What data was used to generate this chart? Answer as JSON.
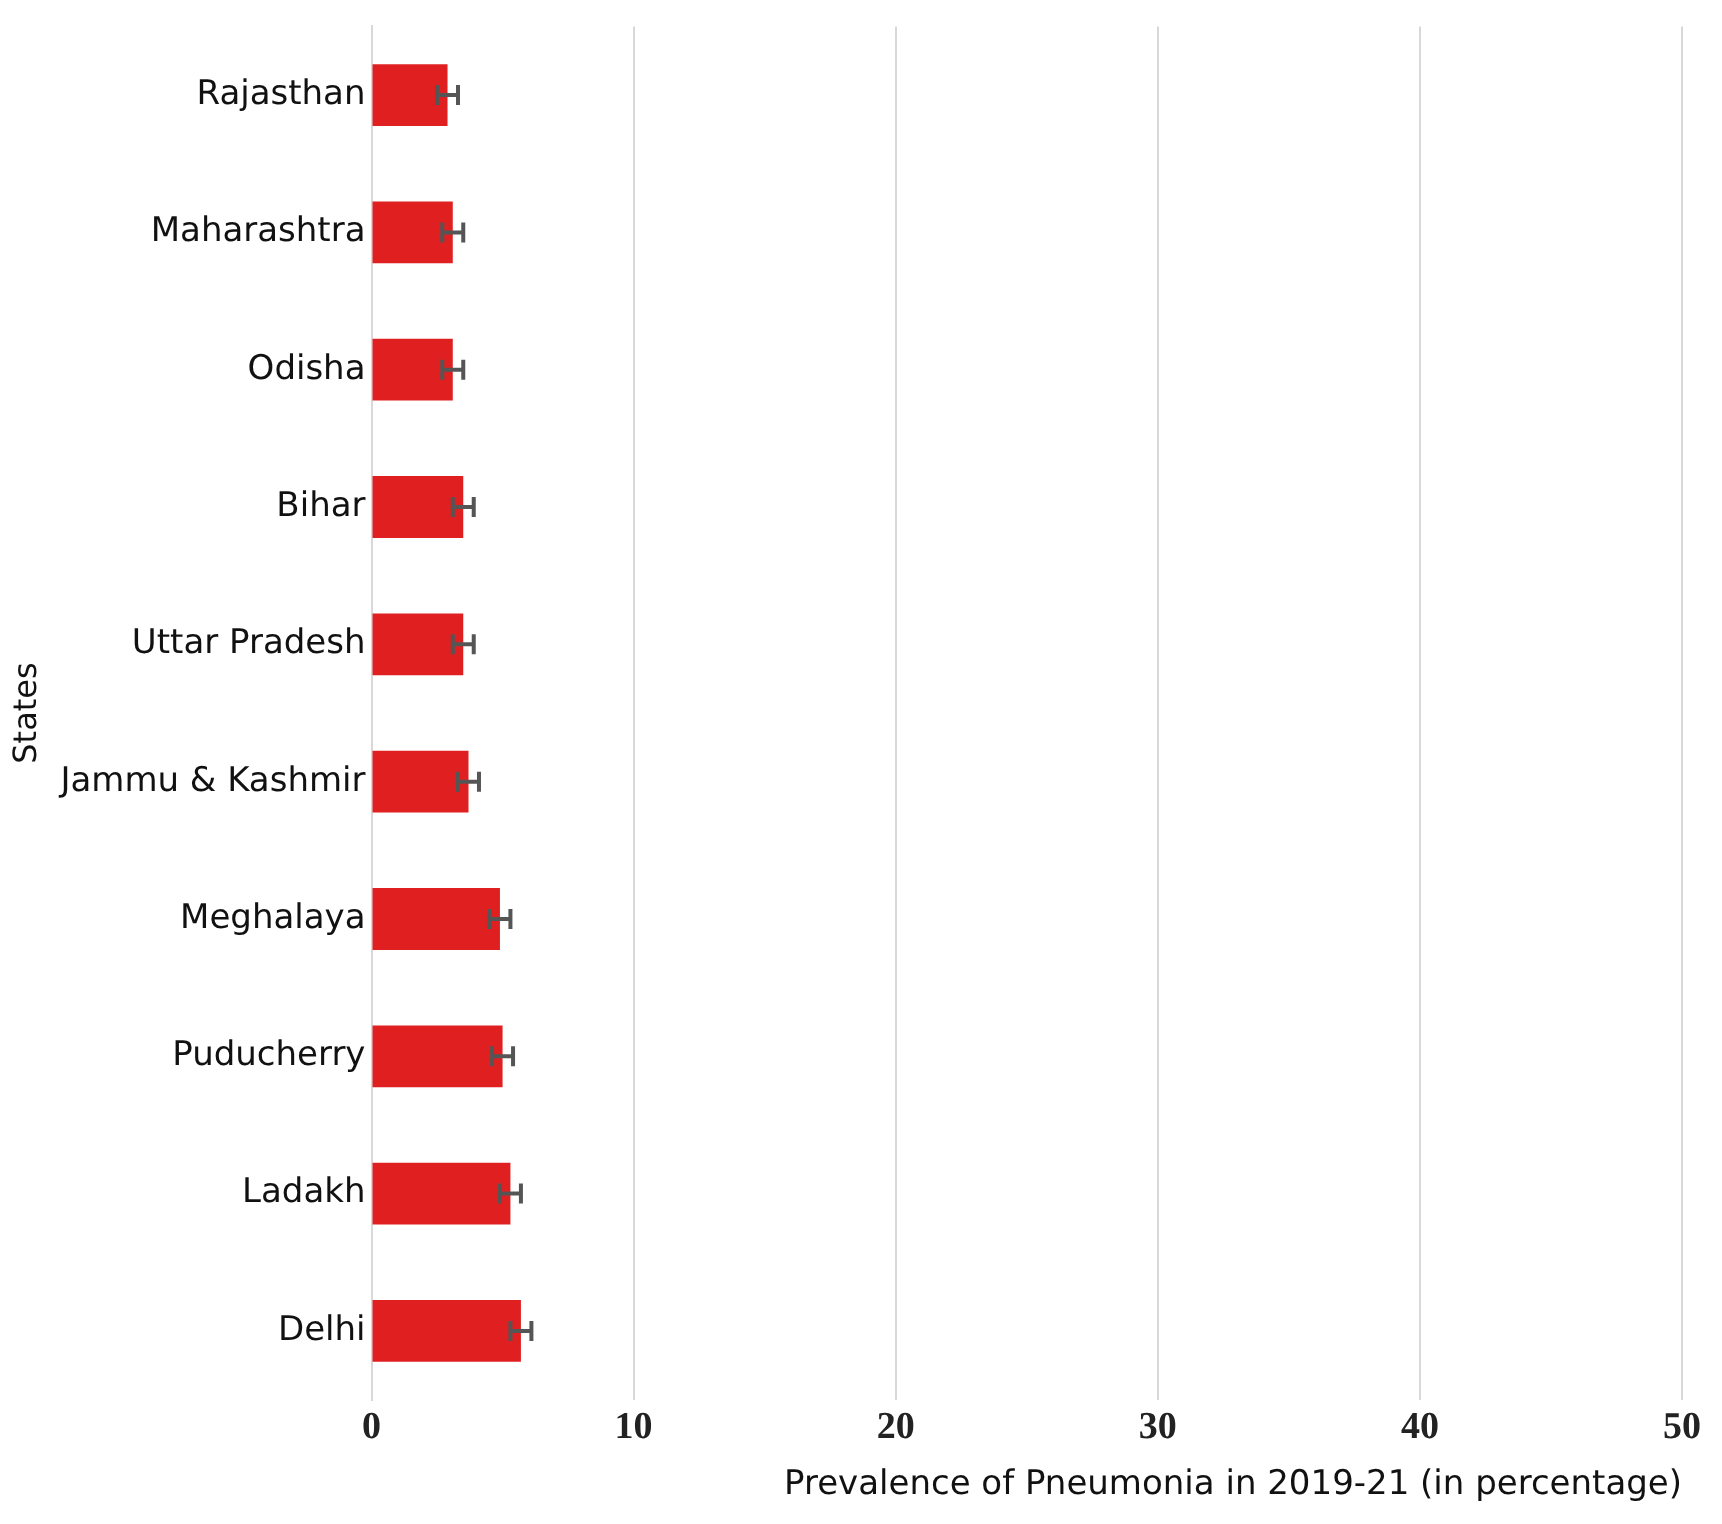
{
  "chart_data": {
    "type": "bar",
    "orientation": "horizontal",
    "xlabel": "Prevalence of Pneumonia in 2019-21 (in percentage)",
    "ylabel": "States",
    "categories": [
      "Rajasthan",
      "Maharashtra",
      "Odisha",
      "Bihar",
      "Uttar Pradesh",
      "Jammu & Kashmir",
      "Meghalaya",
      "Puducherry",
      "Ladakh",
      "Delhi"
    ],
    "values": [
      2.9,
      3.1,
      3.1,
      3.5,
      3.5,
      3.7,
      4.9,
      5.0,
      5.3,
      5.7
    ],
    "errors": [
      0.4,
      0.4,
      0.4,
      0.4,
      0.4,
      0.4,
      0.4,
      0.4,
      0.4,
      0.4
    ],
    "color": "#e02020",
    "xlim": [
      0,
      50
    ],
    "xticks": [
      0,
      10,
      20,
      30,
      40,
      50
    ],
    "grid": "x",
    "legend": false
  }
}
